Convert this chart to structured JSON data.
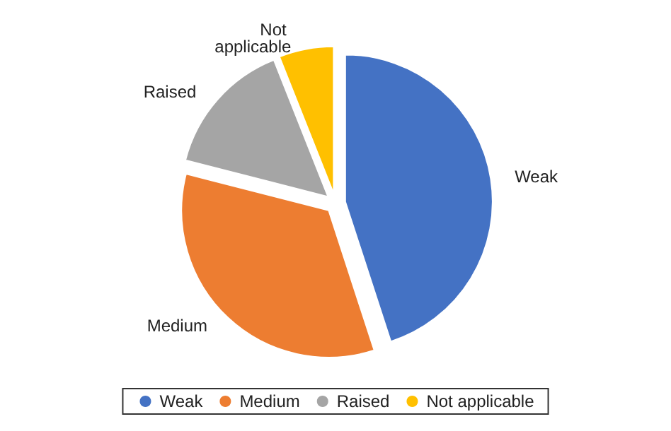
{
  "chart_data": {
    "type": "pie",
    "categories": [
      "Weak",
      "Medium",
      "Raised",
      "Not applicable"
    ],
    "values": [
      45,
      34,
      15,
      6
    ],
    "colors": [
      "#4472c4",
      "#ed7d31",
      "#a5a5a5",
      "#ffc000"
    ],
    "legend": "bottom"
  }
}
